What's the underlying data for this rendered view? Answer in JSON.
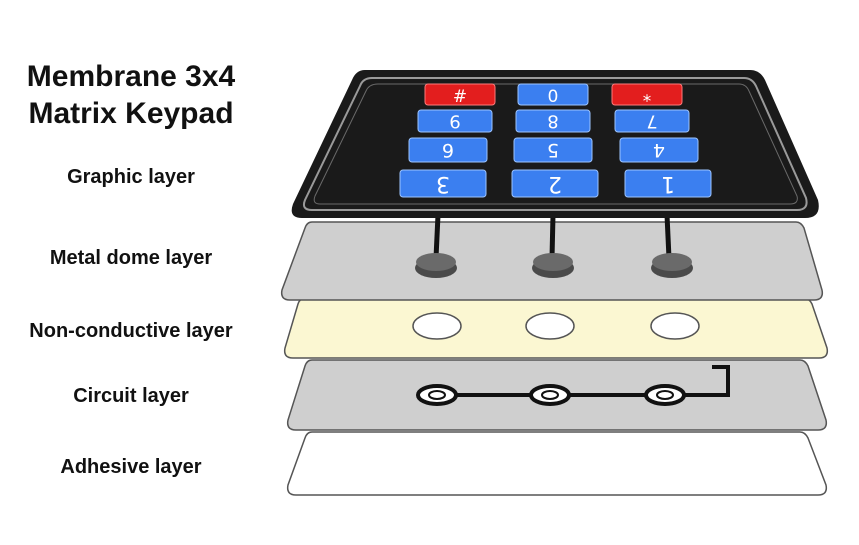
{
  "title": {
    "line1": "Membrane 3x4",
    "line2": "Matrix Keypad"
  },
  "layers": [
    {
      "label": "Graphic layer"
    },
    {
      "label": "Metal dome layer"
    },
    {
      "label": "Non-conductive layer"
    },
    {
      "label": "Circuit layer"
    },
    {
      "label": "Adhesive layer"
    }
  ],
  "keypad": {
    "rows": [
      [
        "#",
        "0",
        "*"
      ],
      [
        "9",
        "8",
        "7"
      ],
      [
        "6",
        "5",
        "4"
      ],
      [
        "3",
        "2",
        "1"
      ]
    ],
    "red_keys": [
      "#",
      "*"
    ]
  },
  "colors": {
    "graphic": "#1a1a1a",
    "key_blue": "#3b7ff0",
    "key_red": "#e31e1e",
    "dome_layer": "#cfcfcf",
    "dome": "#4a4a4a",
    "non_conductive": "#fbf7d2",
    "circuit_layer": "#cfcfcf",
    "adhesive": "#ffffff",
    "outline": "#555555",
    "trace": "#111111"
  }
}
